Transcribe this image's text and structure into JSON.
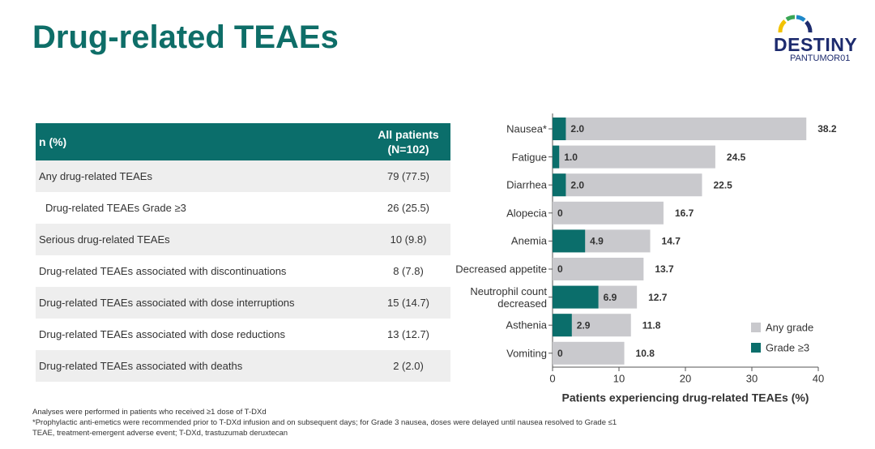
{
  "header": {
    "title": "Drug-related TEAEs",
    "logo": {
      "name": "DESTINY",
      "subtitle": "PANTUMOR01"
    }
  },
  "table": {
    "columns": [
      "n (%)",
      "All patients (N=102)"
    ],
    "rows": [
      [
        "Any drug-related TEAEs",
        "79 (77.5)"
      ],
      [
        "Drug-related TEAEs Grade ≥3",
        "26 (25.5)"
      ],
      [
        "Serious drug-related TEAEs",
        "10 (9.8)"
      ],
      [
        "Drug-related TEAEs associated with discontinuations",
        "8 (7.8)"
      ],
      [
        "Drug-related TEAEs associated with dose interruptions",
        "15 (14.7)"
      ],
      [
        "Drug-related TEAEs associated with dose reductions",
        "13 (12.7)"
      ],
      [
        "Drug-related TEAEs associated with deaths",
        "2 (2.0)"
      ]
    ]
  },
  "chart_data": {
    "type": "bar",
    "orientation": "horizontal",
    "x_label": "Patients experiencing drug-related TEAEs (%)",
    "categories": [
      "Nausea*",
      "Fatigue",
      "Diarrhea",
      "Alopecia",
      "Anemia",
      "Decreased appetite",
      "Neutrophil count decreased",
      "Asthenia",
      "Vomiting"
    ],
    "series": [
      {
        "name": "Any grade",
        "color": "#c9c9cd",
        "values": [
          38.2,
          24.5,
          22.5,
          16.7,
          14.7,
          13.7,
          12.7,
          11.8,
          10.8
        ]
      },
      {
        "name": "Grade ≥3",
        "color": "#0b6e6b",
        "values": [
          2.0,
          1.0,
          2.0,
          0,
          4.9,
          0,
          6.9,
          2.9,
          0
        ],
        "value_labels": [
          "2.0",
          "1.0",
          "2.0",
          "0",
          "4.9",
          "0",
          "6.9",
          "2.9",
          "0"
        ]
      }
    ],
    "xlim": [
      0,
      40
    ],
    "xticks": [
      0,
      10,
      20,
      30,
      40
    ],
    "legend": "lower right",
    "overlap": true
  },
  "footnotes": [
    "Analyses were performed in patients who received ≥1 dose of T-DXd",
    "*Prophylactic anti-emetics were recommended prior to T-DXd infusion and on subsequent days; for Grade 3 nausea, doses were delayed until nausea resolved to Grade ≤1",
    "TEAE, treatment-emergent adverse event; T-DXd, trastuzumab deruxtecan"
  ]
}
